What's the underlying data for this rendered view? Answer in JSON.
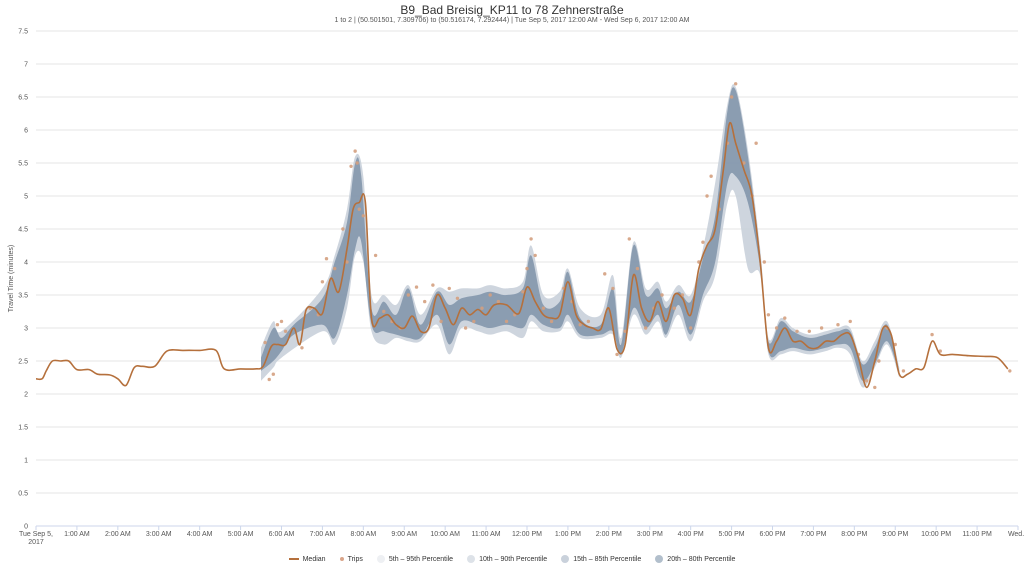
{
  "title": "B9_Bad Breisig_KP11 to 78 Zehnerstraße",
  "subtitle": "1 to 2 | (50.501501, 7.309706) to (50.516174, 7.292444) | Tue Sep 5, 2017 12:00 AM - Wed Sep 6, 2017 12:00 AM",
  "legend": [
    {
      "label": "Median",
      "swatch": "line",
      "color": "#b5703c"
    },
    {
      "label": "Trips",
      "swatch": "dot",
      "color": "#d9a58a"
    },
    {
      "label": "5th – 95th Percentile",
      "swatch": "band",
      "color": "#eef0f3"
    },
    {
      "label": "10th – 90th Percentile",
      "swatch": "band",
      "color": "#dde2e8"
    },
    {
      "label": "15th – 85th Percentile",
      "swatch": "band",
      "color": "#c9d1db"
    },
    {
      "label": "20th – 80th Percentile",
      "swatch": "band",
      "color": "#b2bfcc"
    }
  ],
  "chart_data": {
    "type": "line",
    "title": "B9_Bad Breisig_KP11 to 78 Zehnerstraße",
    "ylabel": "Travel Time (minutes)",
    "xlabel": "",
    "ylim": [
      0,
      7.5
    ],
    "xlim": [
      0,
      24
    ],
    "yticks": [
      "0",
      "0.5",
      "1",
      "1.5",
      "2",
      "2.5",
      "3",
      "3.5",
      "4",
      "4.5",
      "5",
      "5.5",
      "6",
      "6.5",
      "7",
      "7.5"
    ],
    "xticks": [
      {
        "x": 0,
        "label": "Tue Sep 5,",
        "label2": "2017"
      },
      {
        "x": 1,
        "label": "1:00 AM"
      },
      {
        "x": 2,
        "label": "2:00 AM"
      },
      {
        "x": 3,
        "label": "3:00 AM"
      },
      {
        "x": 4,
        "label": "4:00 AM"
      },
      {
        "x": 5,
        "label": "5:00 AM"
      },
      {
        "x": 6,
        "label": "6:00 AM"
      },
      {
        "x": 7,
        "label": "7:00 AM"
      },
      {
        "x": 8,
        "label": "8:00 AM"
      },
      {
        "x": 9,
        "label": "9:00 AM"
      },
      {
        "x": 10,
        "label": "10:00 AM"
      },
      {
        "x": 11,
        "label": "11:00 AM"
      },
      {
        "x": 12,
        "label": "12:00 PM"
      },
      {
        "x": 13,
        "label": "1:00 PM"
      },
      {
        "x": 14,
        "label": "2:00 PM"
      },
      {
        "x": 15,
        "label": "3:00 PM"
      },
      {
        "x": 16,
        "label": "4:00 PM"
      },
      {
        "x": 17,
        "label": "5:00 PM"
      },
      {
        "x": 18,
        "label": "6:00 PM"
      },
      {
        "x": 19,
        "label": "7:00 PM"
      },
      {
        "x": 20,
        "label": "8:00 PM"
      },
      {
        "x": 21,
        "label": "9:00 PM"
      },
      {
        "x": 22,
        "label": "10:00 PM"
      },
      {
        "x": 23,
        "label": "11:00 PM"
      },
      {
        "x": 24,
        "label": "Wed..."
      }
    ],
    "grid": true,
    "legend_position": "bottom",
    "median": [
      [
        0.0,
        2.23
      ],
      [
        0.15,
        2.23
      ],
      [
        0.25,
        2.35
      ],
      [
        0.4,
        2.5
      ],
      [
        0.6,
        2.5
      ],
      [
        0.8,
        2.5
      ],
      [
        1.0,
        2.37
      ],
      [
        1.3,
        2.37
      ],
      [
        1.5,
        2.3
      ],
      [
        1.8,
        2.29
      ],
      [
        2.0,
        2.23
      ],
      [
        2.2,
        2.13
      ],
      [
        2.4,
        2.4
      ],
      [
        2.6,
        2.42
      ],
      [
        2.9,
        2.42
      ],
      [
        3.2,
        2.65
      ],
      [
        3.6,
        2.66
      ],
      [
        4.0,
        2.66
      ],
      [
        4.4,
        2.66
      ],
      [
        4.6,
        2.38
      ],
      [
        5.0,
        2.38
      ],
      [
        5.35,
        2.38
      ],
      [
        5.55,
        2.42
      ],
      [
        5.75,
        2.72
      ],
      [
        5.9,
        2.75
      ],
      [
        6.1,
        2.75
      ],
      [
        6.3,
        3.0
      ],
      [
        6.45,
        2.75
      ],
      [
        6.6,
        3.27
      ],
      [
        6.8,
        3.3
      ],
      [
        7.0,
        3.22
      ],
      [
        7.2,
        3.75
      ],
      [
        7.4,
        3.55
      ],
      [
        7.6,
        4.2
      ],
      [
        7.75,
        4.8
      ],
      [
        7.9,
        4.9
      ],
      [
        8.05,
        4.9
      ],
      [
        8.2,
        3.15
      ],
      [
        8.4,
        3.15
      ],
      [
        8.6,
        3.2
      ],
      [
        8.8,
        3.05
      ],
      [
        9.0,
        3.0
      ],
      [
        9.2,
        3.18
      ],
      [
        9.4,
        2.95
      ],
      [
        9.6,
        3.0
      ],
      [
        9.8,
        3.5
      ],
      [
        10.0,
        3.3
      ],
      [
        10.2,
        3.05
      ],
      [
        10.4,
        3.3
      ],
      [
        10.6,
        3.2
      ],
      [
        10.8,
        3.28
      ],
      [
        11.0,
        3.2
      ],
      [
        11.2,
        3.35
      ],
      [
        11.5,
        3.35
      ],
      [
        11.8,
        3.22
      ],
      [
        12.0,
        3.62
      ],
      [
        12.2,
        3.4
      ],
      [
        12.4,
        3.2
      ],
      [
        12.6,
        3.15
      ],
      [
        12.8,
        3.2
      ],
      [
        13.0,
        3.7
      ],
      [
        13.2,
        3.2
      ],
      [
        13.4,
        3.05
      ],
      [
        13.6,
        3.0
      ],
      [
        13.8,
        2.98
      ],
      [
        14.0,
        3.3
      ],
      [
        14.2,
        2.68
      ],
      [
        14.4,
        2.75
      ],
      [
        14.6,
        3.8
      ],
      [
        14.8,
        3.3
      ],
      [
        15.0,
        3.1
      ],
      [
        15.2,
        3.4
      ],
      [
        15.4,
        3.1
      ],
      [
        15.6,
        3.5
      ],
      [
        15.8,
        3.45
      ],
      [
        16.0,
        3.2
      ],
      [
        16.2,
        3.9
      ],
      [
        16.4,
        4.25
      ],
      [
        16.6,
        4.5
      ],
      [
        16.8,
        5.4
      ],
      [
        16.95,
        6.1
      ],
      [
        17.1,
        5.8
      ],
      [
        17.3,
        5.4
      ],
      [
        17.5,
        5.0
      ],
      [
        17.7,
        4.0
      ],
      [
        17.9,
        2.7
      ],
      [
        18.1,
        2.8
      ],
      [
        18.3,
        3.0
      ],
      [
        18.5,
        2.8
      ],
      [
        18.7,
        2.8
      ],
      [
        18.9,
        2.7
      ],
      [
        19.1,
        2.7
      ],
      [
        19.3,
        2.8
      ],
      [
        19.5,
        2.8
      ],
      [
        19.7,
        2.9
      ],
      [
        19.9,
        2.9
      ],
      [
        20.1,
        2.55
      ],
      [
        20.3,
        2.1
      ],
      [
        20.5,
        2.5
      ],
      [
        20.7,
        3.0
      ],
      [
        20.9,
        2.9
      ],
      [
        21.1,
        2.3
      ],
      [
        21.3,
        2.3
      ],
      [
        21.5,
        2.38
      ],
      [
        21.7,
        2.4
      ],
      [
        21.9,
        2.8
      ],
      [
        22.1,
        2.6
      ],
      [
        22.4,
        2.6
      ],
      [
        22.8,
        2.58
      ],
      [
        23.2,
        2.57
      ],
      [
        23.5,
        2.55
      ],
      [
        23.75,
        2.38
      ]
    ],
    "band_20_80": [
      [
        5.5,
        2.35,
        2.55
      ],
      [
        5.8,
        2.5,
        3.0
      ],
      [
        6.0,
        2.65,
        2.85
      ],
      [
        6.3,
        2.9,
        3.05
      ],
      [
        7.0,
        3.05,
        3.45
      ],
      [
        7.3,
        2.85,
        4.0
      ],
      [
        7.6,
        3.5,
        4.6
      ],
      [
        7.8,
        4.2,
        5.5
      ],
      [
        7.95,
        4.3,
        5.3
      ],
      [
        8.2,
        3.05,
        3.3
      ],
      [
        8.5,
        2.95,
        3.4
      ],
      [
        8.8,
        2.9,
        3.2
      ],
      [
        9.1,
        2.85,
        3.6
      ],
      [
        9.4,
        2.85,
        3.05
      ],
      [
        9.8,
        3.2,
        3.55
      ],
      [
        10.1,
        2.75,
        3.35
      ],
      [
        10.4,
        3.1,
        3.45
      ],
      [
        10.8,
        3.05,
        3.5
      ],
      [
        11.1,
        3.0,
        3.55
      ],
      [
        11.5,
        3.05,
        3.5
      ],
      [
        11.9,
        3.0,
        3.6
      ],
      [
        12.1,
        3.2,
        4.1
      ],
      [
        12.4,
        3.05,
        3.35
      ],
      [
        12.8,
        3.0,
        3.4
      ],
      [
        13.0,
        3.2,
        3.85
      ],
      [
        13.3,
        2.9,
        3.15
      ],
      [
        13.8,
        2.9,
        3.05
      ],
      [
        14.1,
        2.95,
        3.6
      ],
      [
        14.3,
        2.6,
        2.75
      ],
      [
        14.6,
        3.3,
        4.25
      ],
      [
        14.9,
        3.0,
        3.5
      ],
      [
        15.2,
        3.2,
        3.6
      ],
      [
        15.4,
        2.9,
        3.3
      ],
      [
        15.7,
        3.35,
        3.55
      ],
      [
        16.0,
        2.9,
        3.4
      ],
      [
        16.3,
        3.5,
        4.05
      ],
      [
        16.6,
        4.0,
        4.7
      ],
      [
        16.9,
        5.2,
        6.3
      ],
      [
        17.1,
        5.3,
        6.6
      ],
      [
        17.4,
        4.9,
        5.6
      ],
      [
        17.7,
        3.9,
        4.1
      ],
      [
        17.9,
        2.65,
        2.8
      ],
      [
        18.2,
        2.65,
        3.1
      ],
      [
        18.5,
        2.7,
        2.95
      ],
      [
        18.9,
        2.65,
        2.85
      ],
      [
        19.3,
        2.7,
        2.9
      ],
      [
        19.6,
        2.75,
        2.95
      ],
      [
        19.9,
        2.7,
        2.95
      ],
      [
        20.2,
        2.2,
        2.45
      ],
      [
        20.5,
        2.45,
        2.7
      ],
      [
        20.8,
        2.8,
        3.05
      ],
      [
        21.1,
        2.3,
        2.35
      ]
    ],
    "band_5_95": [
      [
        5.5,
        2.2,
        2.7
      ],
      [
        5.8,
        2.4,
        3.1
      ],
      [
        6.0,
        2.55,
        2.95
      ],
      [
        7.0,
        2.95,
        3.6
      ],
      [
        7.3,
        2.75,
        4.1
      ],
      [
        7.6,
        3.3,
        4.8
      ],
      [
        7.8,
        4.1,
        5.6
      ],
      [
        8.0,
        4.0,
        5.3
      ],
      [
        8.2,
        2.95,
        3.5
      ],
      [
        8.5,
        2.75,
        3.5
      ],
      [
        8.8,
        2.85,
        3.35
      ],
      [
        9.1,
        2.8,
        3.65
      ],
      [
        9.4,
        2.8,
        3.2
      ],
      [
        9.8,
        3.05,
        3.6
      ],
      [
        10.1,
        2.6,
        3.55
      ],
      [
        10.4,
        3.0,
        3.6
      ],
      [
        10.8,
        2.95,
        3.6
      ],
      [
        11.1,
        2.9,
        3.65
      ],
      [
        11.5,
        2.95,
        3.6
      ],
      [
        11.9,
        2.85,
        3.7
      ],
      [
        12.1,
        3.1,
        4.25
      ],
      [
        12.4,
        2.95,
        3.5
      ],
      [
        12.8,
        2.95,
        3.55
      ],
      [
        13.0,
        3.1,
        3.9
      ],
      [
        13.3,
        2.85,
        3.3
      ],
      [
        13.8,
        2.85,
        3.2
      ],
      [
        14.1,
        2.9,
        3.8
      ],
      [
        14.3,
        2.55,
        2.85
      ],
      [
        14.6,
        3.2,
        4.3
      ],
      [
        14.9,
        2.9,
        3.6
      ],
      [
        15.2,
        3.1,
        3.7
      ],
      [
        15.4,
        2.85,
        3.4
      ],
      [
        15.7,
        3.2,
        3.65
      ],
      [
        16.0,
        2.8,
        3.5
      ],
      [
        16.3,
        3.4,
        4.2
      ],
      [
        16.6,
        3.8,
        5.2
      ],
      [
        16.9,
        4.9,
        6.4
      ],
      [
        17.1,
        5.0,
        6.65
      ],
      [
        17.4,
        3.9,
        5.7
      ],
      [
        17.7,
        3.8,
        4.2
      ],
      [
        17.9,
        2.6,
        2.85
      ],
      [
        18.2,
        2.6,
        3.15
      ],
      [
        18.5,
        2.65,
        3.0
      ],
      [
        18.9,
        2.6,
        2.9
      ],
      [
        19.3,
        2.65,
        2.95
      ],
      [
        19.6,
        2.7,
        3.0
      ],
      [
        19.9,
        2.6,
        3.0
      ],
      [
        20.2,
        2.1,
        2.5
      ],
      [
        20.5,
        2.4,
        2.8
      ],
      [
        20.8,
        2.75,
        3.1
      ],
      [
        21.1,
        2.25,
        2.4
      ]
    ],
    "trips": [
      [
        5.6,
        2.78
      ],
      [
        5.7,
        2.22
      ],
      [
        5.8,
        2.3
      ],
      [
        5.9,
        3.05
      ],
      [
        6.0,
        3.1
      ],
      [
        6.1,
        2.95
      ],
      [
        6.5,
        2.7
      ],
      [
        6.7,
        3.3
      ],
      [
        6.9,
        3.2
      ],
      [
        7.0,
        3.7
      ],
      [
        7.1,
        4.05
      ],
      [
        7.3,
        3.9
      ],
      [
        7.5,
        4.5
      ],
      [
        7.6,
        4.0
      ],
      [
        7.7,
        5.45
      ],
      [
        7.8,
        5.68
      ],
      [
        7.85,
        5.5
      ],
      [
        7.9,
        4.8
      ],
      [
        8.0,
        4.7
      ],
      [
        8.3,
        4.1
      ],
      [
        8.5,
        3.25
      ],
      [
        8.7,
        3.1
      ],
      [
        8.9,
        3.0
      ],
      [
        9.1,
        3.5
      ],
      [
        9.3,
        3.62
      ],
      [
        9.5,
        3.4
      ],
      [
        9.7,
        3.65
      ],
      [
        9.9,
        3.1
      ],
      [
        10.1,
        3.6
      ],
      [
        10.3,
        3.45
      ],
      [
        10.5,
        3.0
      ],
      [
        10.7,
        3.1
      ],
      [
        10.9,
        3.3
      ],
      [
        11.1,
        3.5
      ],
      [
        11.3,
        3.4
      ],
      [
        11.5,
        3.1
      ],
      [
        11.7,
        3.2
      ],
      [
        11.9,
        3.55
      ],
      [
        12.0,
        3.9
      ],
      [
        12.1,
        4.35
      ],
      [
        12.2,
        4.1
      ],
      [
        12.4,
        3.3
      ],
      [
        12.6,
        3.1
      ],
      [
        12.9,
        3.6
      ],
      [
        13.1,
        3.4
      ],
      [
        13.3,
        3.05
      ],
      [
        13.5,
        3.1
      ],
      [
        13.9,
        3.82
      ],
      [
        14.1,
        3.6
      ],
      [
        14.2,
        2.6
      ],
      [
        14.4,
        2.95
      ],
      [
        14.5,
        4.35
      ],
      [
        14.7,
        3.9
      ],
      [
        14.9,
        3.0
      ],
      [
        15.1,
        3.3
      ],
      [
        15.3,
        3.5
      ],
      [
        15.6,
        3.3
      ],
      [
        15.8,
        3.5
      ],
      [
        16.0,
        3.0
      ],
      [
        16.2,
        4.0
      ],
      [
        16.3,
        4.3
      ],
      [
        16.4,
        5.0
      ],
      [
        16.5,
        5.3
      ],
      [
        16.7,
        4.8
      ],
      [
        16.9,
        5.8
      ],
      [
        17.0,
        6.5
      ],
      [
        17.1,
        6.7
      ],
      [
        17.3,
        5.5
      ],
      [
        17.5,
        5.0
      ],
      [
        17.6,
        5.8
      ],
      [
        17.8,
        4.0
      ],
      [
        17.9,
        3.2
      ],
      [
        18.1,
        3.0
      ],
      [
        18.3,
        3.15
      ],
      [
        18.6,
        2.95
      ],
      [
        18.9,
        2.95
      ],
      [
        19.2,
        3.0
      ],
      [
        19.6,
        3.05
      ],
      [
        19.9,
        3.1
      ],
      [
        20.1,
        2.6
      ],
      [
        20.3,
        2.2
      ],
      [
        20.5,
        2.1
      ],
      [
        20.6,
        2.5
      ],
      [
        20.8,
        3.0
      ],
      [
        21.0,
        2.75
      ],
      [
        21.2,
        2.35
      ],
      [
        21.9,
        2.9
      ],
      [
        22.1,
        2.65
      ],
      [
        23.8,
        2.35
      ]
    ]
  }
}
